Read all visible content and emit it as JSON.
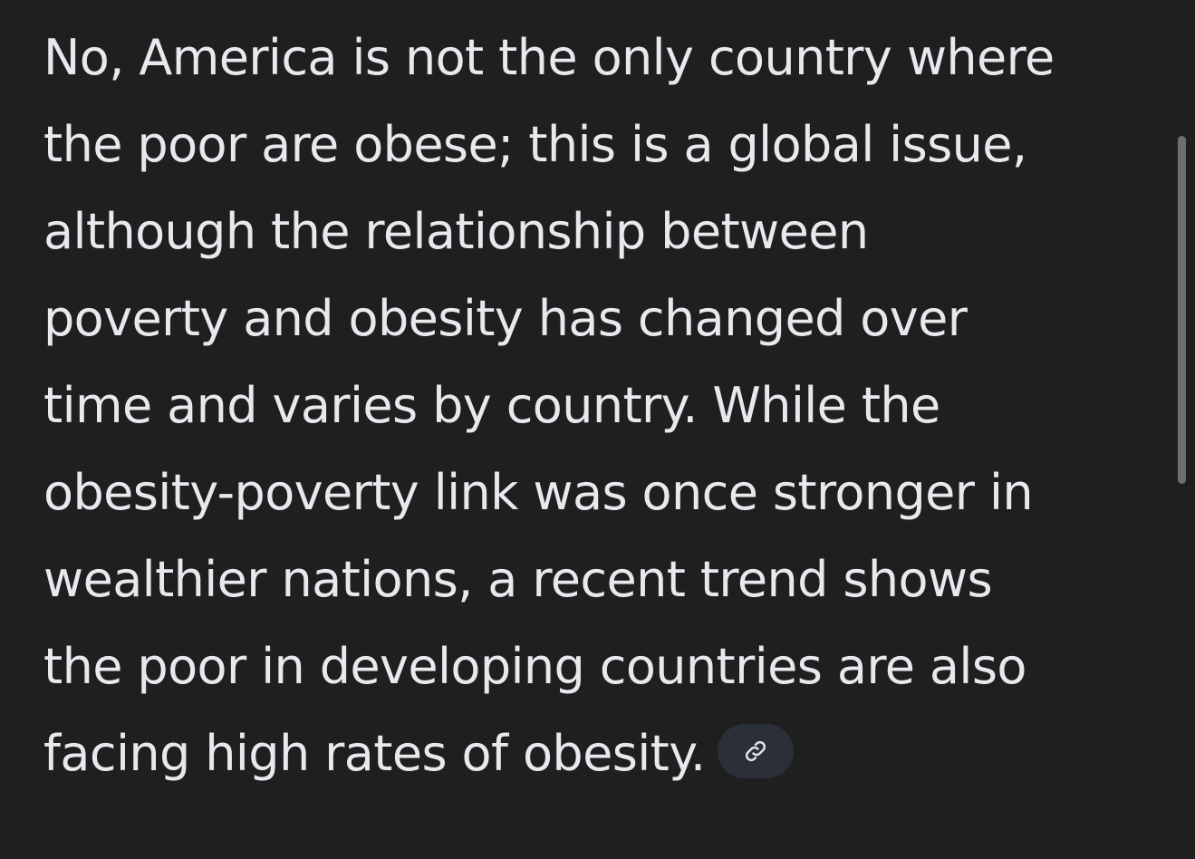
{
  "answer": {
    "lines": [
      "No, America is not the only country where",
      "the poor are obese; this is a global issue,",
      "although the relationship between",
      "poverty and obesity has changed over",
      "time and varies by country. While the",
      "obesity-poverty link was once stronger in",
      "wealthier nations, a recent trend shows",
      "the poor in developing countries are also",
      "facing high rates of obesity."
    ]
  }
}
